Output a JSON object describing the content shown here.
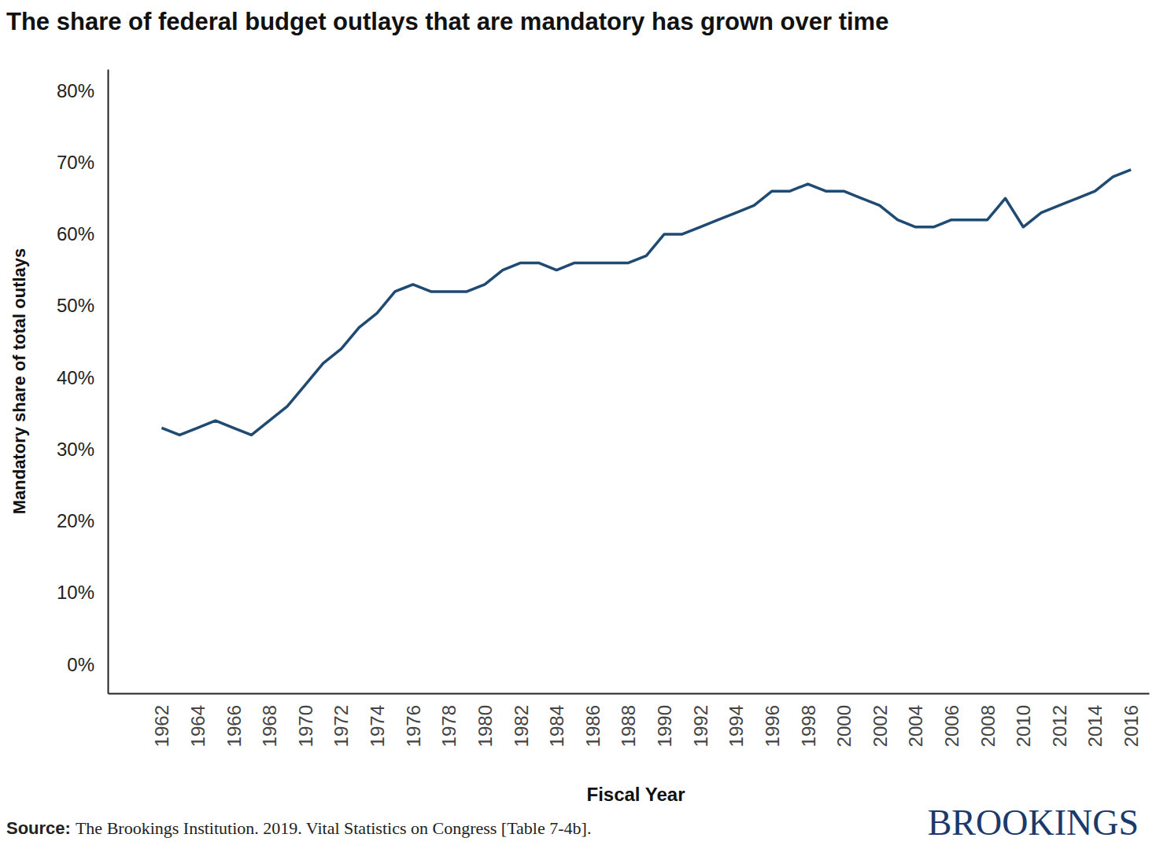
{
  "chart_data": {
    "type": "line",
    "title": "The share of federal budget outlays that are mandatory has grown over time",
    "x_label": "Fiscal Year",
    "y_label": "Mandatory share of total outlays",
    "source_label": "Source:",
    "source_text": "The Brookings Institution. 2019. Vital Statistics on Congress [Table 7-4b].",
    "brand": "BROOKINGS",
    "color": "#1f4a72",
    "grid": false,
    "x": [
      1962,
      1963,
      1964,
      1965,
      1966,
      1967,
      1968,
      1969,
      1970,
      1971,
      1972,
      1973,
      1974,
      1975,
      1976,
      1977,
      1978,
      1979,
      1980,
      1981,
      1982,
      1983,
      1984,
      1985,
      1986,
      1987,
      1988,
      1989,
      1990,
      1991,
      1992,
      1993,
      1994,
      1995,
      1996,
      1997,
      1998,
      1999,
      2000,
      2001,
      2002,
      2003,
      2004,
      2005,
      2006,
      2007,
      2008,
      2009,
      2010,
      2011,
      2012,
      2013,
      2014,
      2015,
      2016
    ],
    "values": [
      33,
      32,
      33,
      34,
      33,
      32,
      34,
      36,
      39,
      42,
      44,
      47,
      49,
      52,
      53,
      52,
      52,
      52,
      53,
      55,
      56,
      56,
      55,
      56,
      56,
      56,
      56,
      57,
      60,
      60,
      61,
      62,
      63,
      64,
      66,
      66,
      67,
      66,
      66,
      65,
      64,
      62,
      61,
      61,
      62,
      62,
      62,
      65,
      61,
      63,
      64,
      65,
      66,
      68,
      69
    ],
    "xlim": [
      1959,
      2017
    ],
    "xticks": [
      1962,
      1964,
      1966,
      1968,
      1970,
      1972,
      1974,
      1976,
      1978,
      1980,
      1982,
      1984,
      1986,
      1988,
      1990,
      1992,
      1994,
      1996,
      1998,
      2000,
      2002,
      2004,
      2006,
      2008,
      2010,
      2012,
      2014,
      2016
    ],
    "ylim": [
      -4,
      83
    ],
    "yticks": [
      {
        "value": 0,
        "label": "0%"
      },
      {
        "value": 10,
        "label": "10%"
      },
      {
        "value": 20,
        "label": "20%"
      },
      {
        "value": 30,
        "label": "30%"
      },
      {
        "value": 40,
        "label": "40%"
      },
      {
        "value": 50,
        "label": "50%"
      },
      {
        "value": 60,
        "label": "60%"
      },
      {
        "value": 70,
        "label": "70%"
      },
      {
        "value": 80,
        "label": "80%"
      }
    ]
  }
}
